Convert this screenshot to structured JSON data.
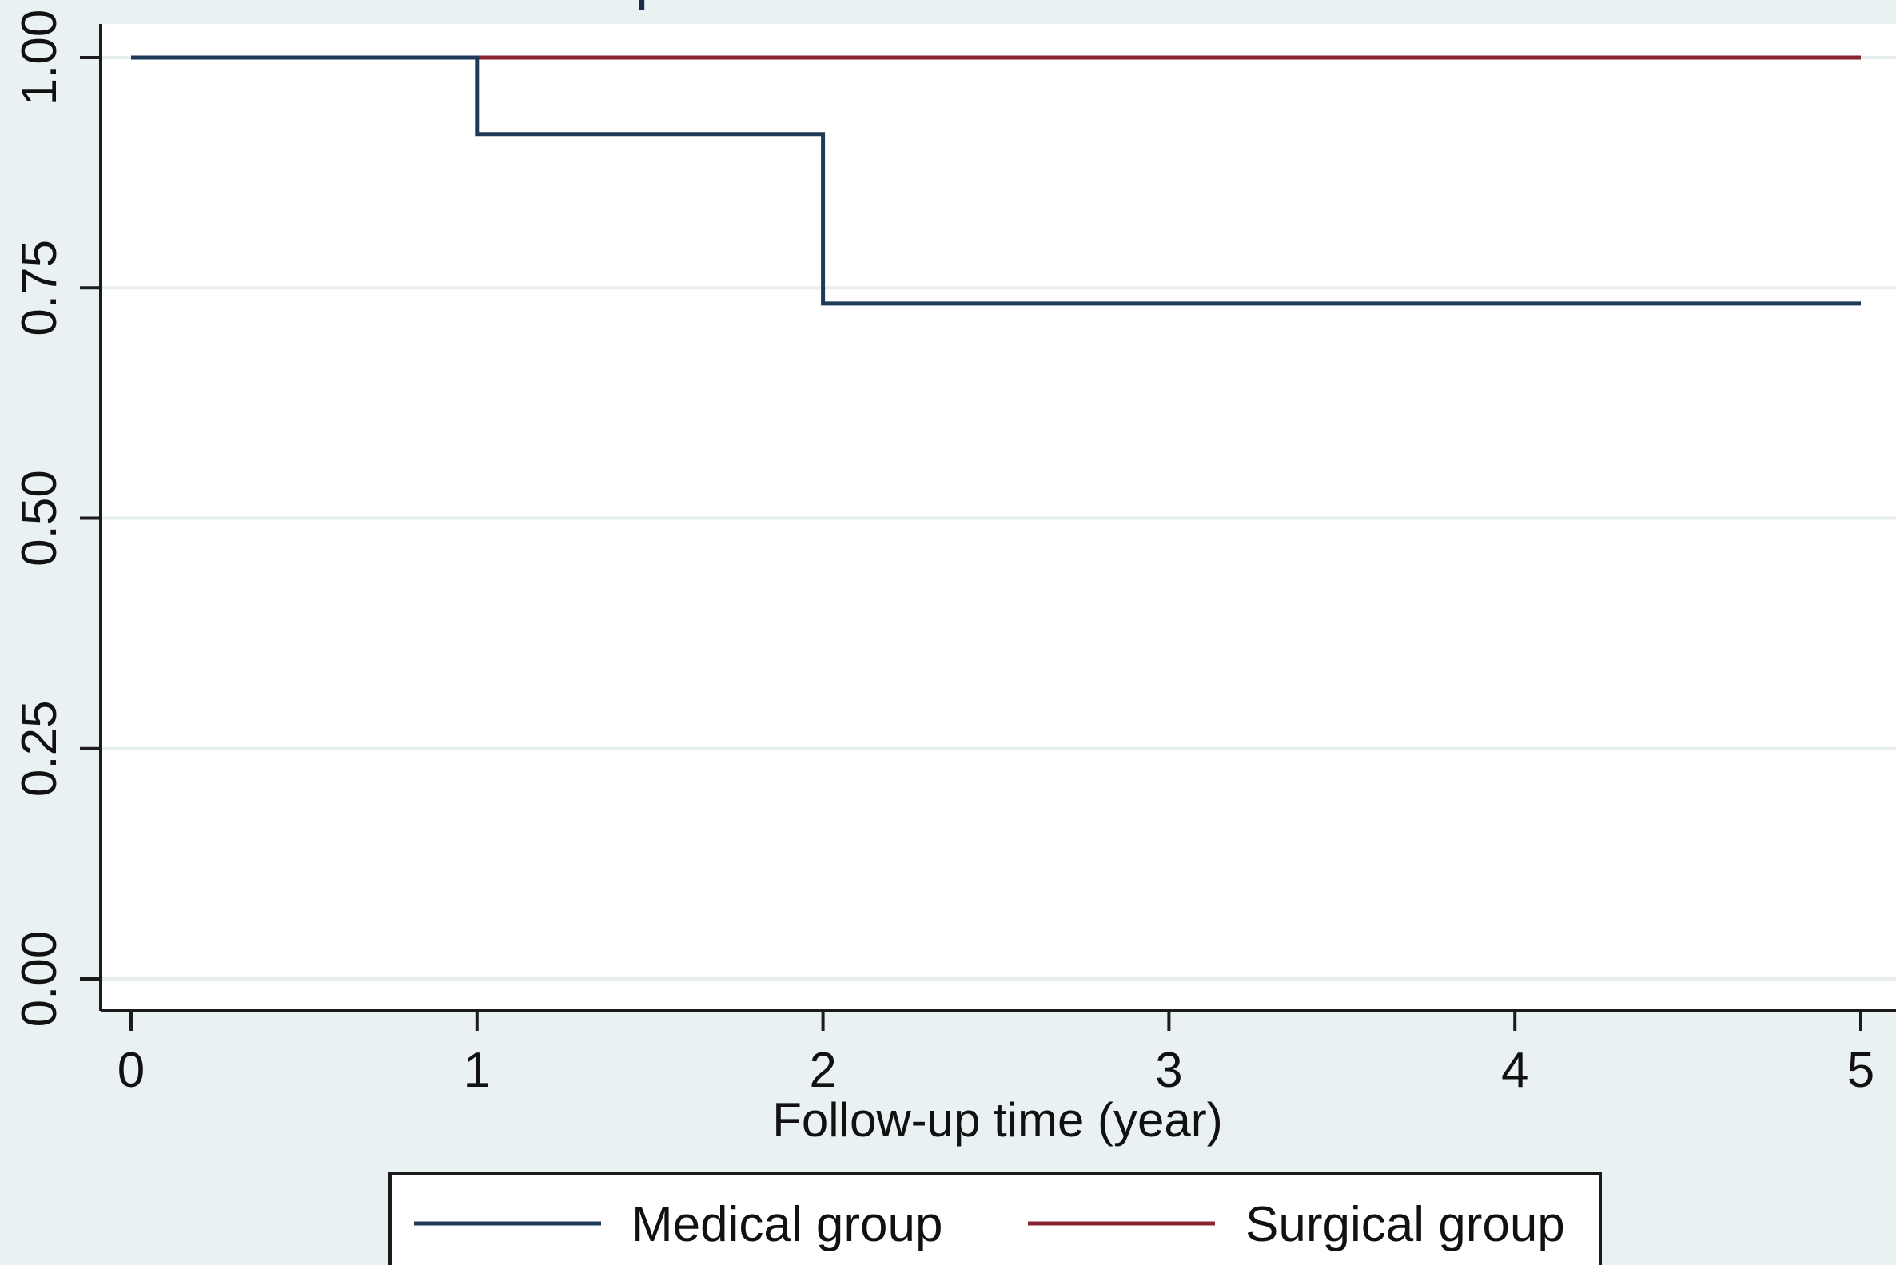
{
  "chart_data": {
    "type": "line",
    "step": true,
    "title": "Kaplan-Meier survival estimates",
    "xlabel": "Follow-up time (year)",
    "ylabel": "",
    "xlim": [
      0,
      5
    ],
    "ylim": [
      0,
      1
    ],
    "xticks": [
      "0",
      "1",
      "2",
      "3",
      "4",
      "5"
    ],
    "yticks": [
      "0.00",
      "0.25",
      "0.50",
      "0.75",
      "1.00"
    ],
    "grid": true,
    "legend_position": "bottom",
    "series": [
      {
        "name": "Medical group",
        "color": "#1f3a57",
        "x": [
          0,
          1,
          2,
          5
        ],
        "y": [
          1.0,
          0.917,
          0.733,
          0.733
        ]
      },
      {
        "name": "Surgical group",
        "color": "#8b2332",
        "x": [
          0,
          5
        ],
        "y": [
          1.0,
          1.0
        ]
      }
    ]
  }
}
